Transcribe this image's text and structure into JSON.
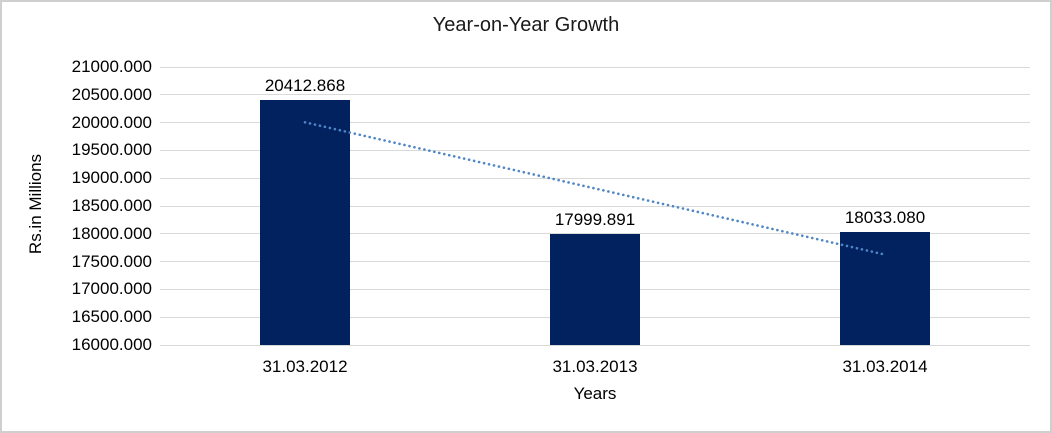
{
  "chart_data": {
    "type": "bar",
    "title": "Year-on-Year Growth",
    "xlabel": "Years",
    "ylabel": "Rs.in Millions",
    "categories": [
      "31.03.2012",
      "31.03.2013",
      "31.03.2014"
    ],
    "values": [
      20412.868,
      17999.891,
      18033.08
    ],
    "data_labels": [
      "20412.868",
      "17999.891",
      "18033.080"
    ],
    "ylim": [
      16000,
      21000
    ],
    "ytick_step": 500,
    "ytick_decimals": 3,
    "ytick_labels": [
      "16000.000",
      "16500.000",
      "17000.000",
      "17500.000",
      "18000.000",
      "18500.000",
      "19000.000",
      "19500.000",
      "20000.000",
      "20500.000",
      "21000.000"
    ],
    "grid": "horizontal",
    "legend": "none",
    "trendline": {
      "type": "linear",
      "style": "dotted",
      "start_value": 20005.166,
      "end_value": 17625.379
    },
    "colors": {
      "bar": "#02215F",
      "trendline": "#4E86C6",
      "gridline": "#D9D9D9",
      "text": "#000000",
      "background": "#FFFFFF",
      "border": "#CFCFCF"
    }
  }
}
